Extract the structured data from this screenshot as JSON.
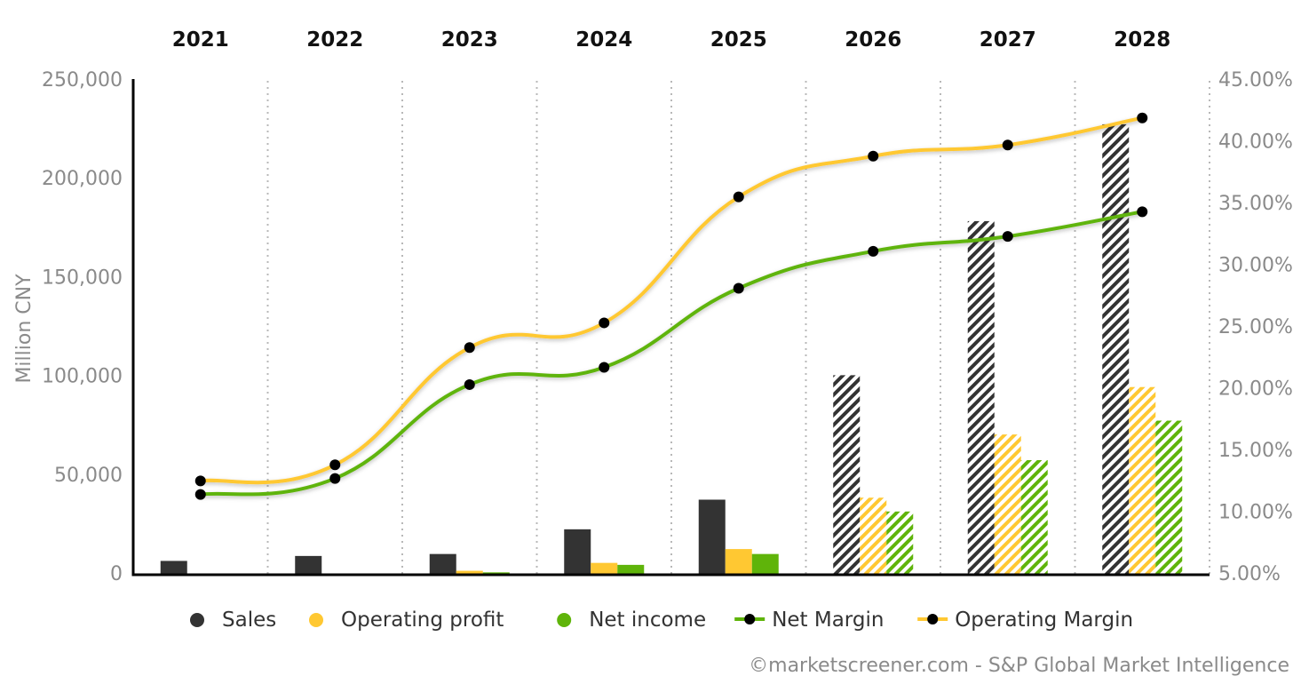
{
  "chart_data": {
    "type": "bar",
    "categories": [
      "2021",
      "2022",
      "2023",
      "2024",
      "2025",
      "2026",
      "2027",
      "2028"
    ],
    "estimated_from": "2026",
    "ylabel": "Million CNY",
    "ylim": [
      0,
      250000
    ],
    "y2lim": [
      5,
      45
    ],
    "y_ticks": [
      {
        "value": 0,
        "label": "0"
      },
      {
        "value": 50000,
        "label": "50,000"
      },
      {
        "value": 100000,
        "label": "100,000"
      },
      {
        "value": 150000,
        "label": "150,000"
      },
      {
        "value": 200000,
        "label": "200,000"
      },
      {
        "value": 250000,
        "label": "250,000"
      }
    ],
    "y2_ticks": [
      {
        "value": 5,
        "label": "5.00%"
      },
      {
        "value": 10,
        "label": "10.00%"
      },
      {
        "value": 15,
        "label": "15.00%"
      },
      {
        "value": 20,
        "label": "20.00%"
      },
      {
        "value": 25,
        "label": "25.00%"
      },
      {
        "value": 30,
        "label": "30.00%"
      },
      {
        "value": 35,
        "label": "35.00%"
      },
      {
        "value": 40,
        "label": "40.00%"
      },
      {
        "value": 45,
        "label": "45.00%"
      }
    ],
    "grid": "vertical dotted",
    "legend_position": "bottom",
    "series": [
      {
        "name": "Sales",
        "kind": "bar",
        "color": "#333333",
        "values": [
          7000,
          9500,
          10500,
          23000,
          38000,
          101000,
          179000,
          228000
        ]
      },
      {
        "name": "Operating profit",
        "kind": "bar",
        "color": "#ffc832",
        "values": [
          0,
          0,
          2000,
          6000,
          13000,
          39000,
          71000,
          95000
        ]
      },
      {
        "name": "Net income",
        "kind": "bar",
        "color": "#5fb40a",
        "values": [
          0,
          0,
          1200,
          5000,
          10500,
          32000,
          58000,
          78000
        ]
      },
      {
        "name": "Net Margin",
        "kind": "line",
        "axis": "right",
        "color": "#5fb40a",
        "marker_color": "#000000",
        "values": [
          11.5,
          12.8,
          20.4,
          21.8,
          28.2,
          31.2,
          32.4,
          34.4
        ]
      },
      {
        "name": "Operating Margin",
        "kind": "line",
        "axis": "right",
        "color": "#ffc832",
        "marker_color": "#000000",
        "values": [
          12.6,
          13.9,
          23.4,
          25.4,
          35.6,
          38.9,
          39.8,
          42.0
        ]
      }
    ],
    "credit": "©marketscreener.com - S&P Global Market Intelligence"
  }
}
